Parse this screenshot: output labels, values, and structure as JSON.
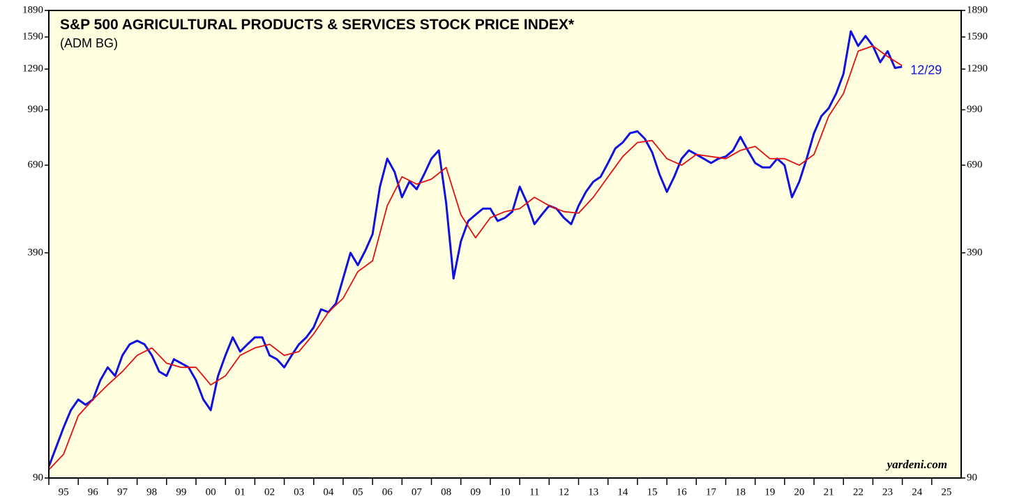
{
  "chart_data": {
    "type": "line",
    "title": "S&P 500 AGRICULTURAL PRODUCTS & SERVICES STOCK PRICE INDEX*",
    "subtitle": "(ADM BG)",
    "annotation": "12/29",
    "source": "yardeni.com",
    "log_scale": true,
    "xlim": [
      1995,
      2026
    ],
    "xticks": [
      {
        "value": 1995,
        "label": "95"
      },
      {
        "value": 1996,
        "label": "96"
      },
      {
        "value": 1997,
        "label": "97"
      },
      {
        "value": 1998,
        "label": "98"
      },
      {
        "value": 1999,
        "label": "99"
      },
      {
        "value": 2000,
        "label": "00"
      },
      {
        "value": 2001,
        "label": "01"
      },
      {
        "value": 2002,
        "label": "02"
      },
      {
        "value": 2003,
        "label": "03"
      },
      {
        "value": 2004,
        "label": "04"
      },
      {
        "value": 2005,
        "label": "05"
      },
      {
        "value": 2006,
        "label": "06"
      },
      {
        "value": 2007,
        "label": "07"
      },
      {
        "value": 2008,
        "label": "08"
      },
      {
        "value": 2009,
        "label": "09"
      },
      {
        "value": 2010,
        "label": "10"
      },
      {
        "value": 2011,
        "label": "11"
      },
      {
        "value": 2012,
        "label": "12"
      },
      {
        "value": 2013,
        "label": "13"
      },
      {
        "value": 2014,
        "label": "14"
      },
      {
        "value": 2015,
        "label": "15"
      },
      {
        "value": 2016,
        "label": "16"
      },
      {
        "value": 2017,
        "label": "17"
      },
      {
        "value": 2018,
        "label": "18"
      },
      {
        "value": 2019,
        "label": "19"
      },
      {
        "value": 2020,
        "label": "20"
      },
      {
        "value": 2021,
        "label": "21"
      },
      {
        "value": 2022,
        "label": "22"
      },
      {
        "value": 2023,
        "label": "23"
      },
      {
        "value": 2024,
        "label": "24"
      },
      {
        "value": 2025,
        "label": "25"
      }
    ],
    "ylim": [
      90,
      1890
    ],
    "yticks": [
      90,
      390,
      690,
      990,
      1290,
      1590,
      1890
    ],
    "series": [
      {
        "color": "#1010e0",
        "x": [
          1995,
          1995.25,
          1995.5,
          1995.75,
          1996,
          1996.25,
          1996.5,
          1996.75,
          1997,
          1997.25,
          1997.5,
          1997.75,
          1998,
          1998.25,
          1998.5,
          1998.75,
          1999,
          1999.25,
          1999.5,
          1999.75,
          2000,
          2000.25,
          2000.5,
          2000.75,
          2001,
          2001.25,
          2001.5,
          2001.75,
          2002,
          2002.25,
          2002.5,
          2002.75,
          2003,
          2003.25,
          2003.5,
          2003.75,
          2004,
          2004.25,
          2004.5,
          2004.75,
          2005,
          2005.25,
          2005.5,
          2005.75,
          2006,
          2006.25,
          2006.5,
          2006.75,
          2007,
          2007.25,
          2007.5,
          2007.75,
          2008,
          2008.25,
          2008.5,
          2008.75,
          2009,
          2009.25,
          2009.5,
          2009.75,
          2010,
          2010.25,
          2010.5,
          2010.75,
          2011,
          2011.25,
          2011.5,
          2011.75,
          2012,
          2012.25,
          2012.5,
          2012.75,
          2013,
          2013.25,
          2013.5,
          2013.75,
          2014,
          2014.25,
          2014.5,
          2014.75,
          2015,
          2015.25,
          2015.5,
          2015.75,
          2016,
          2016.25,
          2016.5,
          2016.75,
          2017,
          2017.25,
          2017.5,
          2017.75,
          2018,
          2018.25,
          2018.5,
          2018.75,
          2019,
          2019.25,
          2019.5,
          2019.75,
          2020,
          2020.25,
          2020.5,
          2020.75,
          2021,
          2021.25,
          2021.5,
          2021.75,
          2022,
          2022.25,
          2022.5,
          2022.75,
          2023,
          2023.25,
          2023.5,
          2023.75,
          2023.99
        ],
        "values": [
          97,
          110,
          125,
          140,
          150,
          145,
          150,
          170,
          185,
          175,
          200,
          215,
          220,
          215,
          200,
          180,
          175,
          195,
          190,
          185,
          170,
          150,
          140,
          175,
          200,
          225,
          205,
          215,
          225,
          225,
          200,
          195,
          185,
          200,
          215,
          225,
          240,
          270,
          265,
          280,
          330,
          390,
          360,
          395,
          440,
          600,
          720,
          660,
          560,
          620,
          590,
          650,
          720,
          760,
          540,
          330,
          420,
          480,
          500,
          520,
          520,
          480,
          490,
          510,
          600,
          540,
          470,
          500,
          530,
          520,
          490,
          470,
          530,
          580,
          620,
          640,
          700,
          770,
          800,
          850,
          860,
          820,
          750,
          650,
          580,
          640,
          720,
          760,
          740,
          720,
          700,
          720,
          730,
          760,
          830,
          760,
          700,
          680,
          680,
          720,
          690,
          560,
          620,
          720,
          850,
          950,
          1000,
          1100,
          1250,
          1650,
          1500,
          1600,
          1500,
          1350,
          1450,
          1300,
          1310
        ]
      },
      {
        "color": "#e01010",
        "x": [
          1995,
          1995.5,
          1996,
          1996.5,
          1997,
          1997.5,
          1998,
          1998.5,
          1999,
          1999.5,
          2000,
          2000.5,
          2001,
          2001.5,
          2002,
          2002.5,
          2003,
          2003.5,
          2004,
          2004.5,
          2005,
          2005.5,
          2006,
          2006.5,
          2007,
          2007.5,
          2008,
          2008.5,
          2009,
          2009.5,
          2010,
          2010.5,
          2011,
          2011.5,
          2012,
          2012.5,
          2013,
          2013.5,
          2014,
          2014.5,
          2015,
          2015.5,
          2016,
          2016.5,
          2017,
          2017.5,
          2018,
          2018.5,
          2019,
          2019.5,
          2020,
          2020.5,
          2021,
          2021.5,
          2022,
          2022.5,
          2023,
          2023.5,
          2023.99
        ],
        "values": [
          95,
          105,
          135,
          150,
          165,
          180,
          200,
          210,
          190,
          185,
          185,
          165,
          175,
          200,
          210,
          215,
          200,
          205,
          230,
          265,
          290,
          345,
          370,
          530,
          640,
          610,
          630,
          680,
          500,
          430,
          490,
          510,
          520,
          560,
          530,
          510,
          505,
          560,
          640,
          730,
          800,
          810,
          720,
          690,
          740,
          730,
          720,
          760,
          780,
          720,
          720,
          690,
          740,
          950,
          1100,
          1450,
          1500,
          1400,
          1320
        ]
      }
    ]
  }
}
